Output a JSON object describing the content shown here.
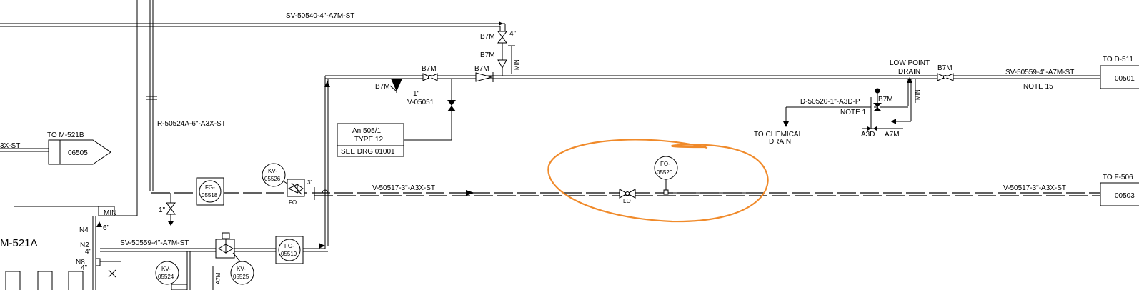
{
  "labels": {
    "line_sv_50540": "SV-50540-4\"-A7M-ST",
    "line_sv_50559_top": "SV-50559-4\"-A7M-ST",
    "line_sv_50559_bottom": "SV-50559-4\"-A7M-ST",
    "line_r_50524a": "R-50524A-6\"-A3X-ST",
    "line_v_50517_left": "V-50517-3\"-A3X-ST",
    "line_v_50517_right": "V-50517-3\"-A3X-ST",
    "line_d_50520": "D-50520-1\"-A3D-P",
    "line_3x_st": "3X-ST",
    "b7m": "B7M",
    "size_4": "4\"",
    "size_1": "1\"",
    "size_6": "6\"",
    "size_3": "3\"",
    "min": "MIN",
    "low_point_drain_1": "LOW POINT",
    "low_point_drain_2": "DRAIN",
    "note_15": "NOTE 15",
    "note_1": "NOTE 1",
    "a3d": "A3D",
    "a7m": "A7M",
    "to_chemical_drain_1": "TO CHEMICAL",
    "to_chemical_drain_2": "DRAIN",
    "valve_v05051": "V-05051",
    "fo": "FO",
    "lo": "LO",
    "n4": "N4",
    "n2": "N2",
    "n8": "N8",
    "equipment_m521a": "M-521A"
  },
  "offpage": {
    "to_d511_label": "TO  D-511",
    "to_d511_ref": "00501",
    "to_f506_label": "TO  F-506",
    "to_f506_ref": "00503",
    "to_m521b_label": "TO  M-521B",
    "to_m521b_ref": "06505"
  },
  "note_box": {
    "line1": "An 505/1",
    "line2": "TYPE 12",
    "line3": "SEE DRG 01001"
  },
  "instruments": {
    "fg05518": [
      "FG-",
      "05518"
    ],
    "fg05519": [
      "FG-",
      "05519"
    ],
    "kv05526": [
      "KV-",
      "05526"
    ],
    "kv05524": [
      "KV-",
      "05524"
    ],
    "kv05525": [
      "KV-",
      "05525"
    ],
    "fo05520": [
      "FO-",
      "05520"
    ]
  },
  "colors": {
    "ink": "#000000",
    "markup_circle": "#f08a2a"
  }
}
